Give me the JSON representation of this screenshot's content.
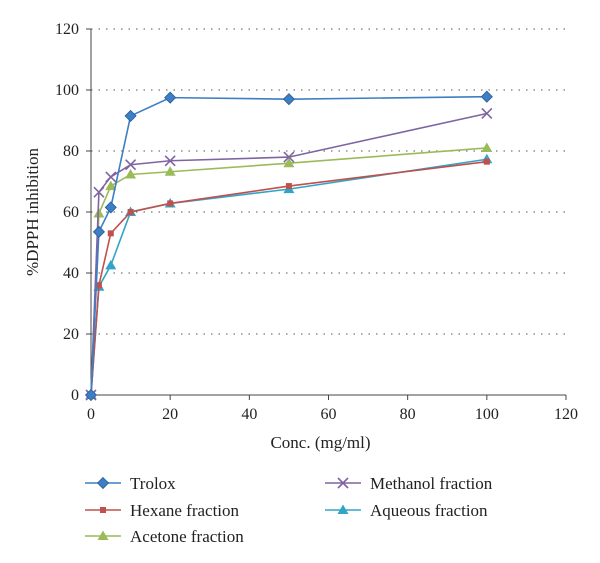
{
  "chart_data": {
    "type": "line",
    "xlabel": "Conc. (mg/ml)",
    "ylabel": "%DPPH inhibition",
    "xlim": [
      0,
      120
    ],
    "ylim": [
      0,
      120
    ],
    "xticks": [
      0,
      20,
      40,
      60,
      80,
      100,
      120
    ],
    "yticks": [
      0,
      20,
      40,
      60,
      80,
      100,
      120
    ],
    "grid": "horizontal-dotted",
    "legend_position": "bottom",
    "x": [
      0,
      2,
      5,
      10,
      20,
      50,
      100
    ],
    "series": [
      {
        "name": "Trolox",
        "color": "#3d7ec4",
        "marker": "diamond",
        "values": [
          0,
          53.5,
          61.5,
          91.5,
          97.5,
          97,
          97.8
        ]
      },
      {
        "name": "Methanol fraction",
        "color": "#8064a2",
        "marker": "x",
        "values": [
          0,
          66.5,
          71.5,
          75.5,
          76.8,
          78,
          92.3
        ]
      },
      {
        "name": "Hexane fraction",
        "color": "#c0504d",
        "marker": "square",
        "values": [
          0,
          36,
          53,
          60,
          62.8,
          68.5,
          76.5
        ]
      },
      {
        "name": "Aqueous fraction",
        "color": "#31a5c7",
        "marker": "triangle",
        "values": [
          0,
          35.5,
          42.5,
          60,
          62.8,
          67.5,
          77.3
        ]
      },
      {
        "name": "Acetone fraction",
        "color": "#9bbb59",
        "marker": "triangle",
        "values": [
          0,
          59.5,
          68.5,
          72.3,
          73.2,
          76,
          81
        ]
      }
    ]
  }
}
